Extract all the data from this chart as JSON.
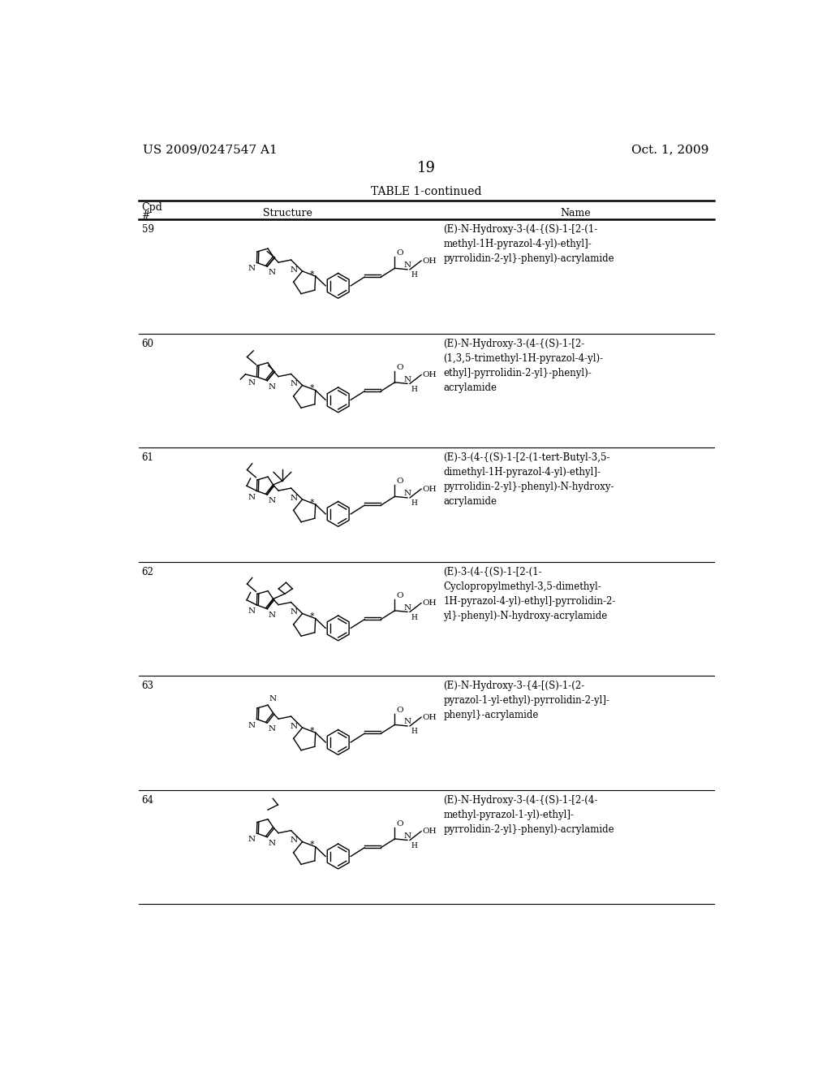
{
  "patent_number": "US 2009/0247547 A1",
  "date": "Oct. 1, 2009",
  "page_number": "19",
  "table_title": "TABLE 1-continued",
  "background_color": "#ffffff",
  "text_color": "#000000",
  "compounds": [
    {
      "number": "59",
      "name": "(E)-N-Hydroxy-3-(4-{(S)-1-[2-(1-\nmethyl-1H-pyrazol-4-yl)-ethyl]-\npyrrolidin-2-yl}-phenyl)-acrylamide"
    },
    {
      "number": "60",
      "name": "(E)-N-Hydroxy-3-(4-{(S)-1-[2-\n(1,3,5-trimethyl-1H-pyrazol-4-yl)-\nethyl]-pyrrolidin-2-yl}-phenyl)-\nacrylamide"
    },
    {
      "number": "61",
      "name": "(E)-3-(4-{(S)-1-[2-(1-tert-Butyl-3,5-\ndimethyl-1H-pyrazol-4-yl)-ethyl]-\npyrrolidin-2-yl}-phenyl)-N-hydroxy-\nacrylamide"
    },
    {
      "number": "62",
      "name": "(E)-3-(4-{(S)-1-[2-(1-\nCyclopropylmethyl-3,5-dimethyl-\n1H-pyrazol-4-yl)-ethyl]-pyrrolidin-2-\nyl}-phenyl)-N-hydroxy-acrylamide"
    },
    {
      "number": "63",
      "name": "(E)-N-Hydroxy-3-{4-[(S)-1-(2-\npyrazol-1-yl-ethyl)-pyrrolidin-2-yl]-\nphenyl}-acrylamide"
    },
    {
      "number": "64",
      "name": "(E)-N-Hydroxy-3-(4-{(S)-1-[2-(4-\nmethyl-pyrazol-1-yl)-ethyl]-\npyrrolidin-2-yl}-phenyl)-acrylamide"
    }
  ],
  "font_size_body": 8.5,
  "font_size_patent": 11,
  "font_size_page": 13,
  "font_size_table_title": 10,
  "font_size_col_header": 9,
  "font_size_cpd": 8.5,
  "font_size_struct": 7.5
}
